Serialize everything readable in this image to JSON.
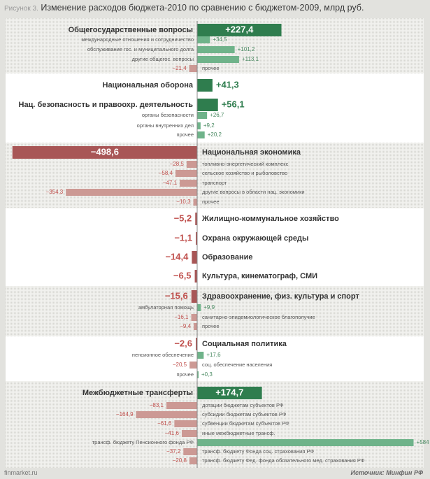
{
  "title_prefix": "Рисунок 3.",
  "title": "Изменение расходов бюджета-2010  по сравнению  с бюджетом-2009,  млрд руб.",
  "footer_left": "finmarket.ru",
  "footer_source": "Источник:  Минфин РФ",
  "colors": {
    "pos_main": "#2f7d4e",
    "pos_sub": "#6fb38a",
    "neg_main": "#a85656",
    "neg_sub": "#cc9994",
    "pos_text": "#2f7d4e",
    "neg_text": "#c0504d"
  },
  "chart_data": {
    "type": "bar",
    "orientation": "horizontal-diverging",
    "title": "Изменение расходов бюджета-2010  по сравнению  с бюджетом-2009,  млрд руб.",
    "groups": [
      {
        "name": "Общегосударственные  вопросы",
        "value": 227.4,
        "value_label": "+227,4",
        "subs": [
          {
            "name": "международные отношения и сотрудничество",
            "value": 34.5,
            "value_label": "+34,5"
          },
          {
            "name": "обслуживание гос. и муниципального долга",
            "value": 101.2,
            "value_label": "+101,2"
          },
          {
            "name": "другие общегос. вопросы",
            "value": 113.1,
            "value_label": "+113,1"
          },
          {
            "name": "прочее",
            "value": -21.4,
            "value_label": "−21,4"
          }
        ]
      },
      {
        "name": "Национальная оборона",
        "value": 41.3,
        "value_label": "+41,3",
        "subs": []
      },
      {
        "name": "Нац.  безопасность  и правоохр.  деятельность",
        "value": 56.1,
        "value_label": "+56,1",
        "subs": [
          {
            "name": "органы безопасности",
            "value": 26.7,
            "value_label": "+26,7"
          },
          {
            "name": "органы внутренних дел",
            "value": 9.2,
            "value_label": "+9,2"
          },
          {
            "name": "прочее",
            "value": 20.2,
            "value_label": "+20,2"
          }
        ]
      },
      {
        "name": "Национальная  экономика",
        "value": -498.6,
        "value_label": "−498,6",
        "subs": [
          {
            "name": "топливно-энергетический комплекс",
            "value": -28.5,
            "value_label": "−28,5"
          },
          {
            "name": "сельское хозяйство и рыболовство",
            "value": -58.4,
            "value_label": "−58,4"
          },
          {
            "name": "транспорт",
            "value": -47.1,
            "value_label": "−47,1"
          },
          {
            "name": "другие вопросы в области нац. экономики",
            "value": -354.3,
            "value_label": "−354,3"
          },
          {
            "name": "прочее",
            "value": -10.3,
            "value_label": "−10,3"
          }
        ]
      },
      {
        "name": "Жилищно-коммунальное  хозяйство",
        "value": -5.2,
        "value_label": "−5,2",
        "subs": []
      },
      {
        "name": "Охрана окружающей  среды",
        "value": -1.1,
        "value_label": "−1,1",
        "subs": []
      },
      {
        "name": "Образование",
        "value": -14.4,
        "value_label": "−14,4",
        "subs": []
      },
      {
        "name": "Культура,  кинематограф,  СМИ",
        "value": -6.5,
        "value_label": "−6,5",
        "subs": []
      },
      {
        "name": "Здравоохранение,  физ.  культура и спорт",
        "value": -15.6,
        "value_label": "−15,6",
        "subs": [
          {
            "name": "амбулаторная помощь",
            "value": 9.9,
            "value_label": "+9,9"
          },
          {
            "name": "санитарно-эпидемиологическое благополучие",
            "value": -16.1,
            "value_label": "−16,1"
          },
          {
            "name": "прочее",
            "value": -9.4,
            "value_label": "−9,4"
          }
        ]
      },
      {
        "name": "Социальная  политика",
        "value": -2.6,
        "value_label": "−2,6",
        "subs": [
          {
            "name": "пенсионное обеспечение",
            "value": 17.6,
            "value_label": "+17,6"
          },
          {
            "name": "соц. обеспечение населения",
            "value": -20.5,
            "value_label": "−20,5"
          },
          {
            "name": "прочее",
            "value": 0.3,
            "value_label": "+0,3"
          }
        ]
      },
      {
        "name": "Межбюджетные  трансферты",
        "value": 174.7,
        "value_label": "+174,7",
        "subs": [
          {
            "name": "дотации бюджетам субъектов РФ",
            "value": -83.1,
            "value_label": "−83,1"
          },
          {
            "name": "субсидии бюджетам субъектов РФ",
            "value": -164.9,
            "value_label": "−164,9"
          },
          {
            "name": "субвенции бюджетам субъектов РФ",
            "value": -61.6,
            "value_label": "−61,6"
          },
          {
            "name": "иные межбюджетные трансф.",
            "value": -41.6,
            "value_label": "−41,6"
          },
          {
            "name": "трансф. бюджету Пенсионного фонда РФ",
            "value": 584,
            "value_label": "+584"
          },
          {
            "name": "трансф. бюджету Фонда соц. страхования РФ",
            "value": -37.2,
            "value_label": "−37,2"
          },
          {
            "name": "трансф. бюджету Фед. фонда обязательного мед. страхования РФ",
            "value": -20.8,
            "value_label": "−20,8"
          }
        ]
      }
    ]
  }
}
